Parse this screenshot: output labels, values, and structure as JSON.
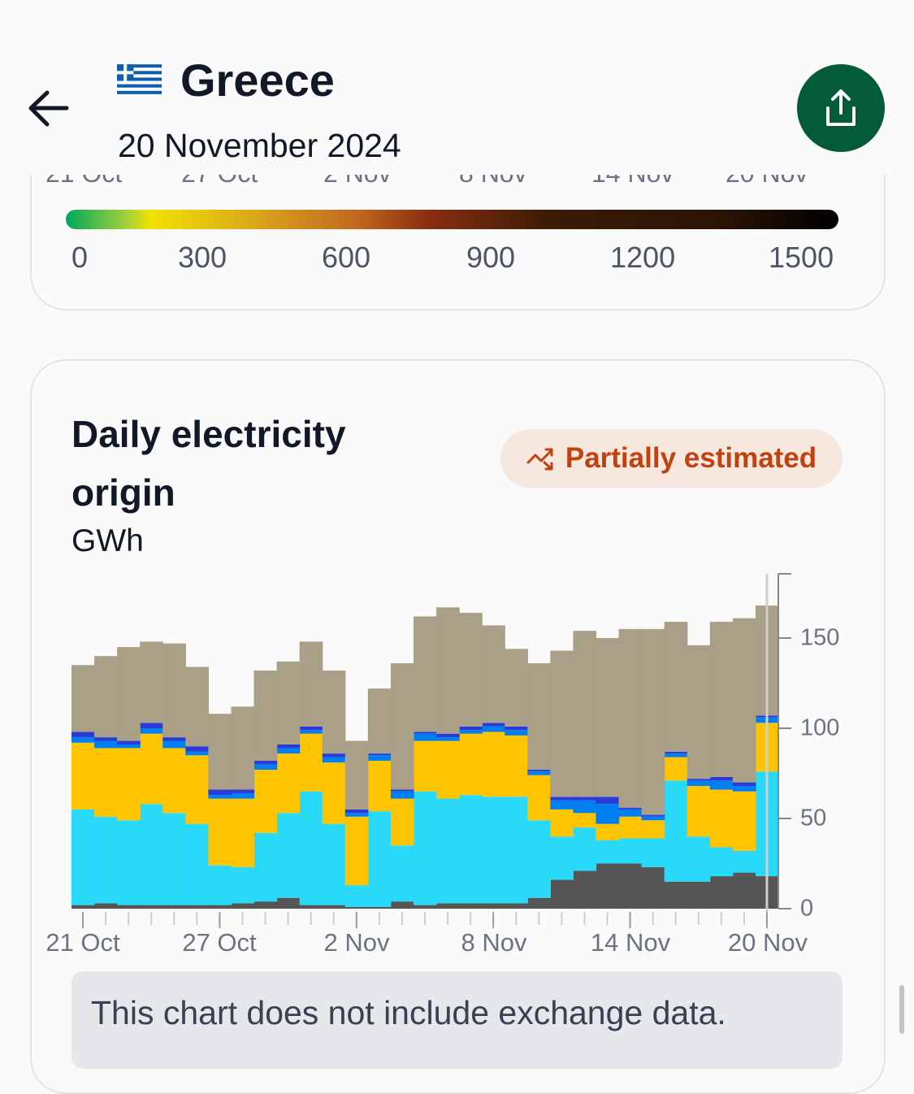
{
  "header": {
    "country": "Greece",
    "date": "20 November 2024",
    "back_icon": "arrow-left-icon",
    "flag_icon": "greece-flag-icon",
    "share_icon": "share-icon",
    "share_color": "#035b37"
  },
  "previous_card": {
    "x_labels": [
      "21 Oct",
      "27 Oct",
      "2 Nov",
      "8 Nov",
      "14 Nov",
      "20 Nov"
    ],
    "color_scale": {
      "labels": [
        "0",
        "300",
        "600",
        "900",
        "1200",
        "1500"
      ],
      "min": 0,
      "max": 1500
    }
  },
  "origin_card": {
    "title": "Daily electricity origin",
    "unit": "GWh",
    "badge": {
      "label": "Partially estimated",
      "icon": "trend-estimate-icon",
      "color": "#c2410c",
      "background": "#f6e8df"
    },
    "note": "This chart does not include exchange data."
  },
  "chart_data": {
    "type": "area",
    "stacked": true,
    "ylabel": "GWh",
    "ylim": [
      0,
      185
    ],
    "yticks": [
      0,
      50,
      100,
      150
    ],
    "x_tick_labels": [
      "21 Oct",
      "27 Oct",
      "2 Nov",
      "8 Nov",
      "14 Nov",
      "20 Nov"
    ],
    "x": [
      "2024-10-21",
      "2024-10-22",
      "2024-10-23",
      "2024-10-24",
      "2024-10-25",
      "2024-10-26",
      "2024-10-27",
      "2024-10-28",
      "2024-10-29",
      "2024-10-30",
      "2024-10-31",
      "2024-11-01",
      "2024-11-02",
      "2024-11-03",
      "2024-11-04",
      "2024-11-05",
      "2024-11-06",
      "2024-11-07",
      "2024-11-08",
      "2024-11-09",
      "2024-11-10",
      "2024-11-11",
      "2024-11-12",
      "2024-11-13",
      "2024-11-14",
      "2024-11-15",
      "2024-11-16",
      "2024-11-17",
      "2024-11-18",
      "2024-11-19",
      "2024-11-20"
    ],
    "selected": "2024-11-20",
    "series": [
      {
        "color": "#555555",
        "values": [
          2,
          3,
          2,
          2,
          2,
          2,
          2,
          3,
          4,
          6,
          2,
          2,
          1,
          1,
          4,
          2,
          3,
          3,
          3,
          3,
          6,
          16,
          21,
          25,
          25,
          23,
          15,
          15,
          18,
          20,
          18
        ]
      },
      {
        "color": "#28d9fa",
        "values": [
          53,
          48,
          47,
          56,
          51,
          45,
          22,
          20,
          38,
          47,
          63,
          45,
          12,
          53,
          31,
          63,
          58,
          60,
          59,
          59,
          43,
          24,
          24,
          13,
          14,
          16,
          56,
          25,
          16,
          12,
          58
        ]
      },
      {
        "color": "#ffc400",
        "values": [
          37,
          38,
          40,
          39,
          36,
          38,
          37,
          38,
          35,
          33,
          32,
          34,
          38,
          28,
          26,
          28,
          32,
          34,
          36,
          34,
          25,
          15,
          8,
          9,
          12,
          10,
          13,
          28,
          32,
          33,
          27
        ]
      },
      {
        "color": "#0080f0",
        "values": [
          3,
          4,
          2,
          3,
          4,
          2,
          2,
          3,
          3,
          3,
          2,
          3,
          2,
          3,
          4,
          4,
          2,
          2,
          3,
          3,
          2,
          5,
          7,
          11,
          4,
          2,
          2,
          3,
          5,
          3,
          3
        ]
      },
      {
        "color": "#2a3bd8",
        "values": [
          3,
          2,
          2,
          3,
          2,
          3,
          3,
          2,
          2,
          2,
          2,
          2,
          2,
          1,
          1,
          1,
          2,
          2,
          2,
          2,
          1,
          2,
          2,
          4,
          1,
          1,
          1,
          1,
          2,
          2,
          1
        ]
      },
      {
        "color": "#aa9f87",
        "values": [
          37,
          45,
          52,
          45,
          52,
          44,
          42,
          46,
          50,
          46,
          47,
          46,
          38,
          36,
          70,
          64,
          70,
          63,
          54,
          43,
          59,
          81,
          92,
          88,
          99,
          103,
          72,
          74,
          86,
          91,
          61
        ]
      }
    ]
  }
}
